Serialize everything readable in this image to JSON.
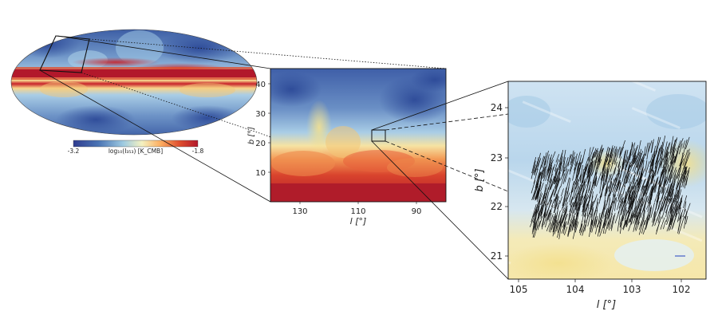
{
  "figure": {
    "colorbar": {
      "label": "log₁₀(I₃₅₃) [K_CMB]",
      "min_label": "-3.2",
      "max_label": "-1.8",
      "colors": [
        "#2f3c8f",
        "#4a74b4",
        "#9ecae1",
        "#f4f1c1",
        "#fdae61",
        "#e0502f",
        "#b2182b"
      ]
    },
    "middle_panel": {
      "x_label": "l [°]",
      "y_label": "b [°]",
      "x_ticks": [
        "130",
        "110",
        "90"
      ],
      "y_ticks": [
        "40",
        "30",
        "20",
        "10"
      ]
    },
    "right_panel": {
      "x_label": "l [°]",
      "y_label": "b [°]",
      "x_ticks": [
        "105",
        "104",
        "103",
        "102"
      ],
      "y_ticks": [
        "24",
        "23",
        "22",
        "21"
      ]
    },
    "styles": {
      "hot_band": "#b2182b",
      "cold_blue": "#3a5ba3",
      "pale_blue": "#c6dff0",
      "pale_yellow": "#f7ecae"
    }
  }
}
